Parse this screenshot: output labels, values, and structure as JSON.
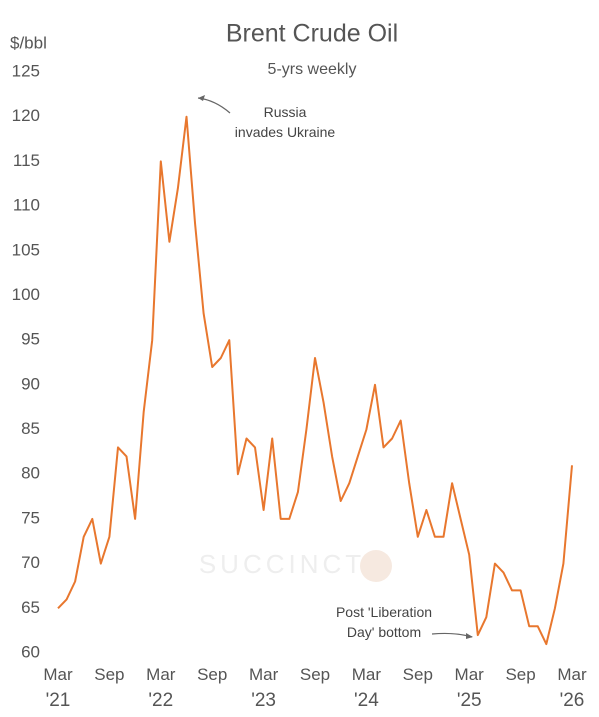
{
  "chart_data": {
    "type": "line",
    "title": "Brent Crude Oil",
    "subtitle": "5-yrs weekly",
    "y_label": "$/bbl",
    "watermark": "SUCCINCT",
    "annotations": [
      "Russia invades Ukraine",
      "Post 'Liberation Day' bottom"
    ],
    "x": [
      "2021-03",
      "2021-04",
      "2021-05",
      "2021-06",
      "2021-07",
      "2021-08",
      "2021-09",
      "2021-10",
      "2021-11",
      "2021-12",
      "2022-01",
      "2022-02",
      "2022-03",
      "2022-04",
      "2022-05",
      "2022-06",
      "2022-07",
      "2022-08",
      "2022-09",
      "2022-10",
      "2022-11",
      "2022-12",
      "2023-01",
      "2023-02",
      "2023-03",
      "2023-04",
      "2023-05",
      "2023-06",
      "2023-07",
      "2023-08",
      "2023-09",
      "2023-10",
      "2023-11",
      "2023-12",
      "2024-01",
      "2024-02",
      "2024-03",
      "2024-04",
      "2024-05",
      "2024-06",
      "2024-07",
      "2024-08",
      "2024-09",
      "2024-10",
      "2024-11",
      "2024-12",
      "2025-01",
      "2025-02",
      "2025-03",
      "2025-04",
      "2025-05",
      "2025-06",
      "2025-07",
      "2025-08",
      "2025-09",
      "2025-10",
      "2025-11",
      "2025-12",
      "2026-01",
      "2026-02",
      "2026-03"
    ],
    "series": [
      {
        "name": "Brent",
        "color": "#e8772e",
        "values": [
          65,
          66,
          68,
          73,
          75,
          70,
          73,
          83,
          82,
          75,
          87,
          95,
          115,
          106,
          112,
          120,
          108,
          98,
          92,
          93,
          95,
          80,
          84,
          83,
          76,
          84,
          75,
          75,
          78,
          85,
          93,
          88,
          82,
          77,
          79,
          82,
          85,
          90,
          83,
          84,
          86,
          79,
          73,
          76,
          73,
          73,
          79,
          75,
          71,
          62,
          64,
          70,
          69,
          67,
          67,
          63,
          63,
          61,
          65,
          70,
          81
        ]
      }
    ],
    "xlim": [
      "2021-03",
      "2026-03"
    ],
    "xticks": [
      {
        "value": "2021-03",
        "label": "Mar '21"
      },
      {
        "value": "2021-09",
        "label": "Sep"
      },
      {
        "value": "2022-03",
        "label": "Mar '22"
      },
      {
        "value": "2022-09",
        "label": "Sep"
      },
      {
        "value": "2023-03",
        "label": "Mar '23"
      },
      {
        "value": "2023-09",
        "label": "Sep"
      },
      {
        "value": "2024-03",
        "label": "Mar '24"
      },
      {
        "value": "2024-09",
        "label": "Sep"
      },
      {
        "value": "2025-03",
        "label": "Mar '25"
      },
      {
        "value": "2025-09",
        "label": "Sep"
      },
      {
        "value": "2026-03",
        "label": "Mar '26"
      }
    ],
    "ylim": [
      60,
      125
    ],
    "yticks": [
      60,
      65,
      70,
      75,
      80,
      85,
      90,
      95,
      100,
      105,
      110,
      115,
      120,
      125
    ],
    "grid": false
  }
}
